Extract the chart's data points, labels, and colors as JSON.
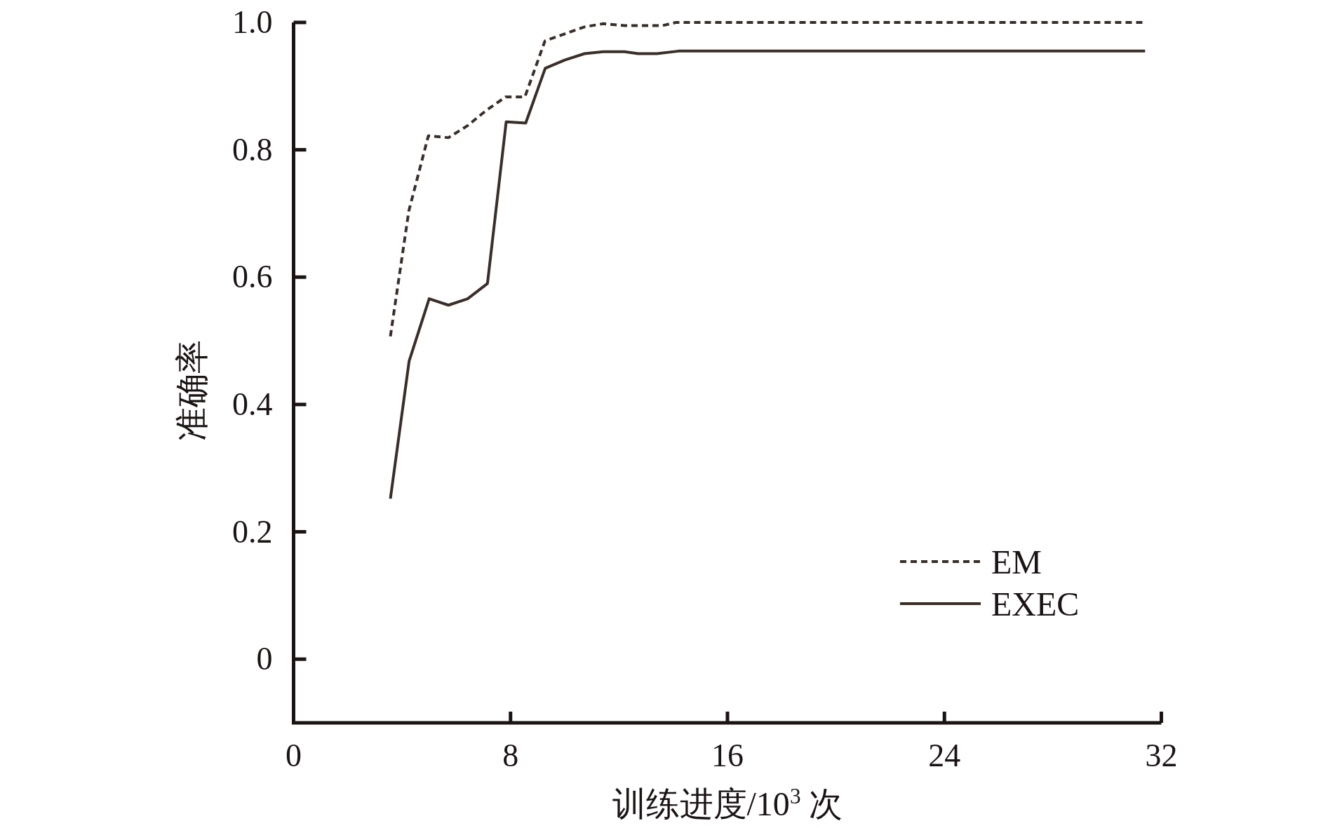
{
  "chart_data": {
    "type": "line",
    "xlabel": "训练进度/10$^{3}$ 次",
    "ylabel": "准确率",
    "xlim": [
      0,
      32
    ],
    "ylim": [
      -0.1,
      1.0
    ],
    "xticks": [
      0,
      8,
      16,
      24,
      32
    ],
    "yticks": [
      0,
      0.2,
      0.4,
      0.6,
      0.8,
      {
        "value": 1,
        "label": "1.0"
      }
    ],
    "legend": "bottom right",
    "grid": false,
    "marker": "none",
    "series": [
      {
        "name": "EM",
        "color": "#3a2e28",
        "line_style": "dashed",
        "x": [
          3.57,
          4.25,
          4.97,
          5.71,
          6.42,
          7.11,
          7.82,
          8.53,
          9.27,
          10.0,
          10.73,
          11.42,
          12.2,
          13.6,
          14.1,
          31.4
        ],
        "values": [
          0.507,
          0.704,
          0.822,
          0.819,
          0.838,
          0.862,
          0.883,
          0.883,
          0.971,
          0.982,
          0.993,
          0.998,
          0.995,
          0.995,
          1.0,
          1.0
        ]
      },
      {
        "name": "EXEC",
        "color": "#3a2e28",
        "line_style": "solid",
        "x": [
          3.57,
          4.26,
          5.0,
          5.71,
          6.42,
          7.15,
          7.84,
          8.56,
          9.28,
          10.0,
          10.73,
          11.42,
          12.2,
          12.7,
          13.4,
          14.2,
          31.4
        ],
        "values": [
          0.252,
          0.468,
          0.566,
          0.556,
          0.566,
          0.59,
          0.844,
          0.842,
          0.928,
          0.941,
          0.951,
          0.954,
          0.954,
          0.951,
          0.951,
          0.955,
          0.955
        ]
      }
    ]
  }
}
